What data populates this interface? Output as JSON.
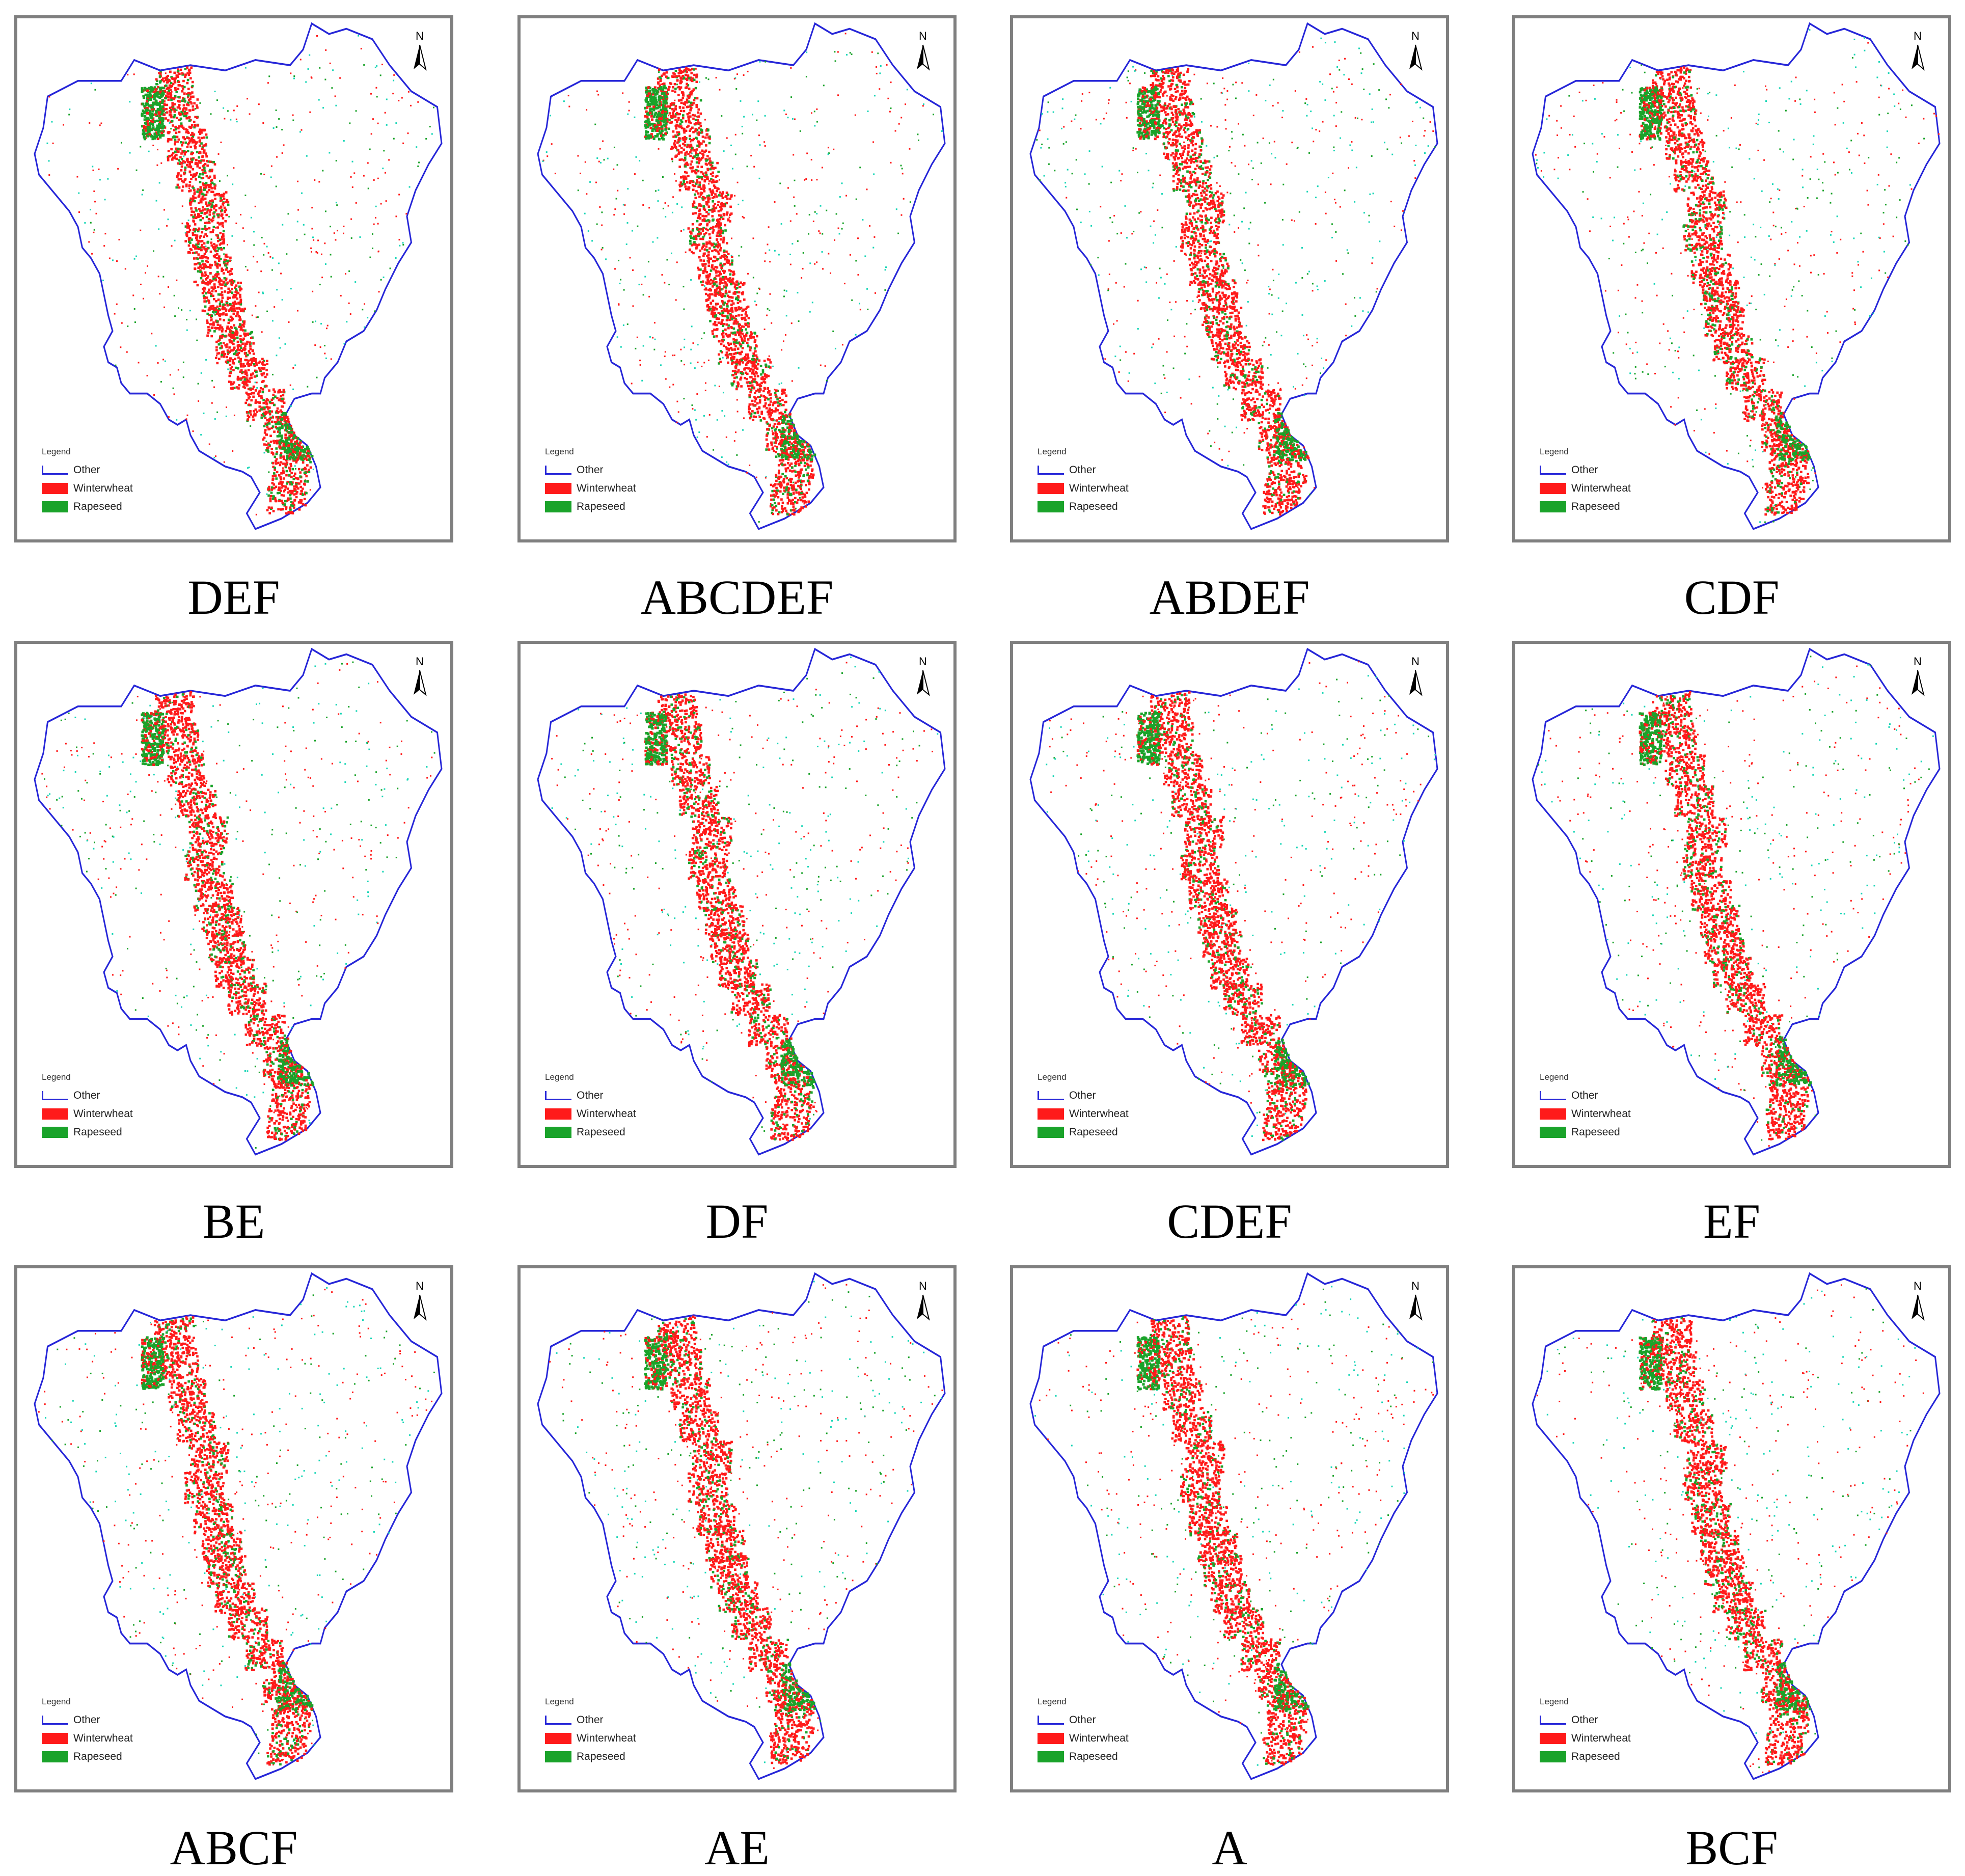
{
  "panels": [
    {
      "caption": "DEF"
    },
    {
      "caption": "ABCDEF"
    },
    {
      "caption": "ABDEF"
    },
    {
      "caption": "CDF"
    },
    {
      "caption": "BE"
    },
    {
      "caption": "DF"
    },
    {
      "caption": "CDEF"
    },
    {
      "caption": "EF"
    },
    {
      "caption": "ABCF"
    },
    {
      "caption": "AE"
    },
    {
      "caption": "A"
    },
    {
      "caption": "BCF"
    }
  ],
  "legend": {
    "title": "Legend",
    "items": [
      {
        "label": "Other",
        "color": "#2626d8"
      },
      {
        "label": "Winterwheat",
        "color": "#ff1a1a"
      },
      {
        "label": "Rapeseed",
        "color": "#1aa32a"
      }
    ]
  },
  "north_label": "N",
  "colors": {
    "boundary": "#2626d8",
    "wheat": "#ff1a1a",
    "rapeseed": "#1aa32a",
    "speckle": "#18d6b6"
  }
}
